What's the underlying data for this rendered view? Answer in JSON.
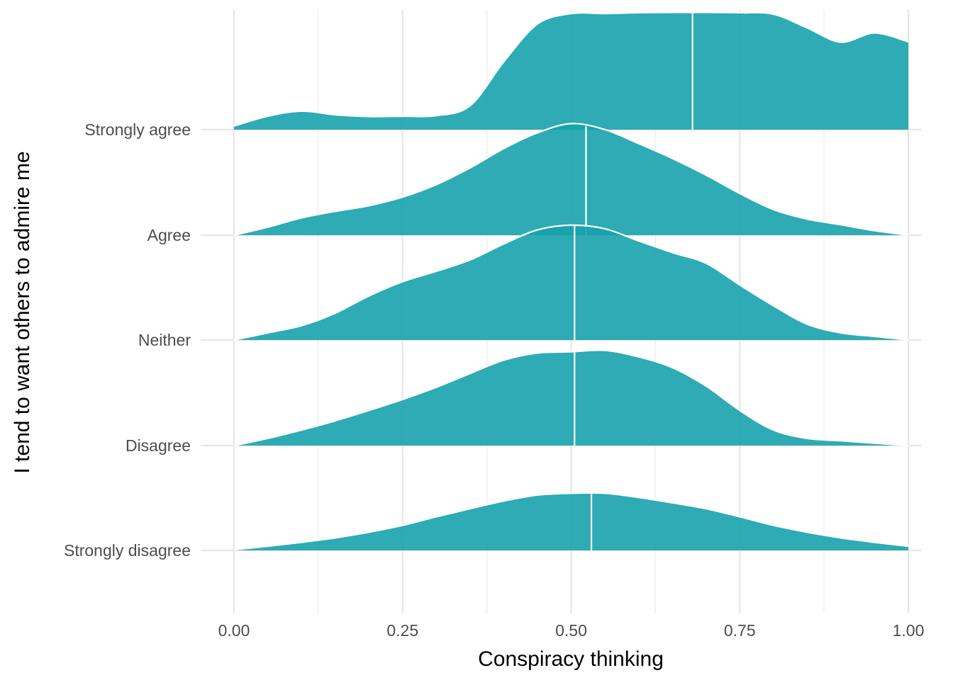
{
  "chart_data": {
    "type": "ridgeline",
    "title": "",
    "xlabel": "Conspiracy thinking",
    "ylabel": "I tend to want others to admire me",
    "xlim": [
      0,
      1
    ],
    "x_ticks": [
      "0.00",
      "0.25",
      "0.50",
      "0.75",
      "1.00"
    ],
    "fill_color": "#17a2ac",
    "fill_opacity": 0.9,
    "outline_color": "#ffffff",
    "grid": true,
    "categories": [
      "Strongly disagree",
      "Disagree",
      "Neither",
      "Agree",
      "Strongly agree"
    ],
    "series": [
      {
        "name": "Strongly disagree",
        "median": 0.53,
        "x": [
          0,
          0.05,
          0.1,
          0.15,
          0.2,
          0.25,
          0.3,
          0.35,
          0.4,
          0.45,
          0.5,
          0.55,
          0.6,
          0.65,
          0.7,
          0.75,
          0.8,
          0.85,
          0.9,
          0.95,
          1.0
        ],
        "y": [
          0.02,
          0.14,
          0.27,
          0.42,
          0.61,
          0.84,
          1.13,
          1.4,
          1.66,
          1.86,
          1.92,
          1.92,
          1.78,
          1.6,
          1.4,
          1.13,
          0.84,
          0.61,
          0.42,
          0.27,
          0.14
        ]
      },
      {
        "name": "Disagree",
        "median": 0.505,
        "x": [
          0,
          0.05,
          0.1,
          0.15,
          0.2,
          0.25,
          0.3,
          0.35,
          0.4,
          0.45,
          0.5,
          0.55,
          0.6,
          0.65,
          0.7,
          0.75,
          0.8,
          0.85,
          0.9,
          0.95,
          1.0
        ],
        "y": [
          0,
          0.24,
          0.52,
          0.83,
          1.18,
          1.55,
          1.96,
          2.42,
          2.87,
          3.11,
          3.15,
          3.2,
          2.98,
          2.62,
          2.0,
          1.18,
          0.52,
          0.24,
          0.16,
          0.08,
          0
        ]
      },
      {
        "name": "Neither",
        "median": 0.505,
        "x": [
          0,
          0.05,
          0.1,
          0.15,
          0.2,
          0.25,
          0.3,
          0.35,
          0.4,
          0.45,
          0.5,
          0.55,
          0.6,
          0.65,
          0.7,
          0.75,
          0.8,
          0.85,
          0.9,
          0.95,
          1.0
        ],
        "y": [
          0,
          0.24,
          0.48,
          0.9,
          1.48,
          1.96,
          2.31,
          2.69,
          3.23,
          3.7,
          3.86,
          3.74,
          3.33,
          2.94,
          2.58,
          1.85,
          1.15,
          0.53,
          0.24,
          0.12,
          0
        ]
      },
      {
        "name": "Agree",
        "median": 0.522,
        "x": [
          0,
          0.05,
          0.1,
          0.15,
          0.2,
          0.25,
          0.3,
          0.35,
          0.4,
          0.45,
          0.5,
          0.55,
          0.6,
          0.65,
          0.7,
          0.75,
          0.8,
          0.85,
          0.9,
          0.95,
          1.0
        ],
        "y": [
          0,
          0.27,
          0.58,
          0.8,
          0.99,
          1.28,
          1.7,
          2.26,
          2.91,
          3.44,
          3.75,
          3.55,
          3.08,
          2.58,
          2.02,
          1.4,
          0.86,
          0.54,
          0.35,
          0.15,
          0
        ]
      },
      {
        "name": "Strongly agree",
        "median": 0.68,
        "x": [
          0,
          0.05,
          0.1,
          0.15,
          0.2,
          0.25,
          0.3,
          0.35,
          0.4,
          0.45,
          0.5,
          0.55,
          0.6,
          0.65,
          0.7,
          0.75,
          0.8,
          0.85,
          0.9,
          0.95,
          1.0
        ],
        "y": [
          0.12,
          0.45,
          0.62,
          0.5,
          0.44,
          0.45,
          0.47,
          0.8,
          2.28,
          3.55,
          3.9,
          3.9,
          3.93,
          3.94,
          3.94,
          3.93,
          3.88,
          3.42,
          2.94,
          3.25,
          2.95
        ]
      }
    ]
  }
}
